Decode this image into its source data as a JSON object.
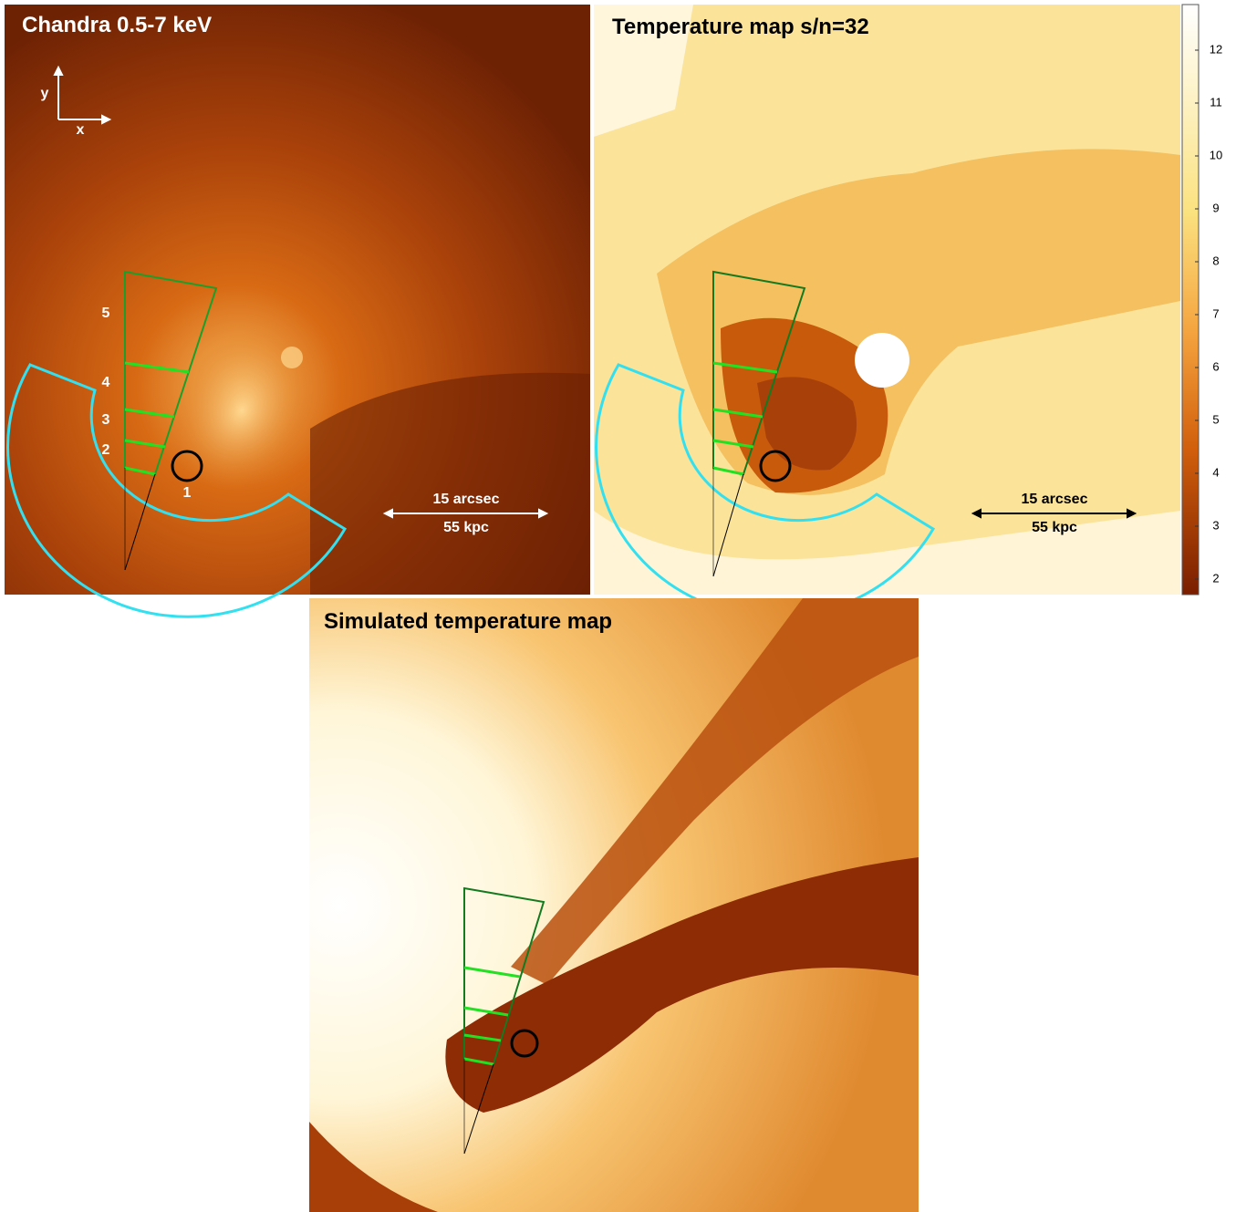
{
  "panels": [
    {
      "title": "Chandra 0.5-7 keV",
      "axis_labels": {
        "x": "x",
        "y": "y"
      },
      "region_labels": [
        "5",
        "4",
        "3",
        "2",
        "1"
      ],
      "scale_bar": {
        "angular": "15 arcsec",
        "physical": "55 kpc"
      }
    },
    {
      "title": "Temperature map s/n=32",
      "scale_bar": {
        "angular": "15 arcsec",
        "physical": "55 kpc"
      },
      "colorbar_ticks": [
        2,
        3,
        4,
        5,
        6,
        7,
        8,
        9,
        10,
        11,
        12
      ]
    },
    {
      "title": "Simulated temperature map"
    }
  ]
}
